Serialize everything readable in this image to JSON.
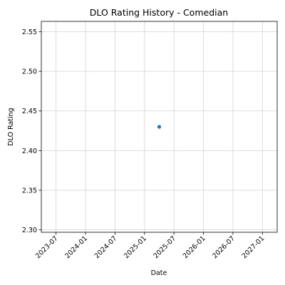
{
  "chart_data": {
    "type": "scatter",
    "title": "DLO Rating History - Comedian",
    "xlabel": "Date",
    "ylabel": "DLO Rating",
    "x_ticks": [
      "2023-07",
      "2024-01",
      "2024-07",
      "2025-01",
      "2025-07",
      "2026-01",
      "2026-07",
      "2027-01"
    ],
    "y_ticks": [
      "2.30",
      "2.35",
      "2.40",
      "2.45",
      "2.50",
      "2.55"
    ],
    "xlim": [
      "2023-04",
      "2027-04"
    ],
    "ylim": [
      2.297,
      2.563
    ],
    "grid": true,
    "points": [
      {
        "x": "2025-04-01",
        "y": 2.43
      }
    ],
    "marker_color": "#1f77b4"
  }
}
